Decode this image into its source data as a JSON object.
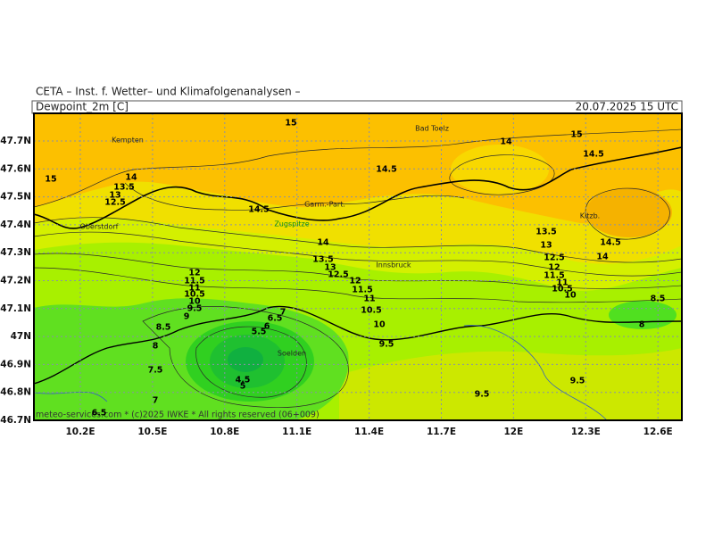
{
  "header": {
    "agency": "CETA – Inst. f. Wetter– und Klimafolgenanalysen –",
    "field": "Dewpoint_2m [C]",
    "valid": "20.07.2025 15 UTC"
  },
  "axes": {
    "y_labels": [
      "47.7N",
      "47.6N",
      "47.5N",
      "47.4N",
      "47.3N",
      "47.2N",
      "47.1N",
      "47N",
      "46.9N",
      "46.8N",
      "46.7N"
    ],
    "x_labels": [
      "10.2E",
      "10.5E",
      "10.8E",
      "11.1E",
      "11.4E",
      "11.7E",
      "12E",
      "12.3E",
      "12.6E"
    ]
  },
  "places": [
    "Kempten",
    "Bad Toelz",
    "Garm.-Part.",
    "Zugspitze",
    "Oberstdorf",
    "Innsbruck",
    "Kitzb.",
    "Soelden"
  ],
  "contour_labels": [
    15,
    15,
    14,
    13.5,
    13,
    12.5,
    14.5,
    14.5,
    14,
    15,
    14.5,
    14,
    13.5,
    13,
    12.5,
    12,
    11.5,
    11,
    10.5,
    10,
    9.5,
    12,
    11.5,
    11,
    10.5,
    10,
    9.5,
    9,
    8.5,
    8,
    7.5,
    7,
    6.5,
    7,
    6.5,
    6,
    5.5,
    4.5,
    5,
    9.5,
    9.5,
    13.5,
    13,
    12.5,
    12,
    11.5,
    11,
    10.5,
    10,
    14.5,
    14,
    8.5,
    8
  ],
  "footer": "meteo-services.com * (c)2025 IWKE * All rights reserved (06+009)"
}
